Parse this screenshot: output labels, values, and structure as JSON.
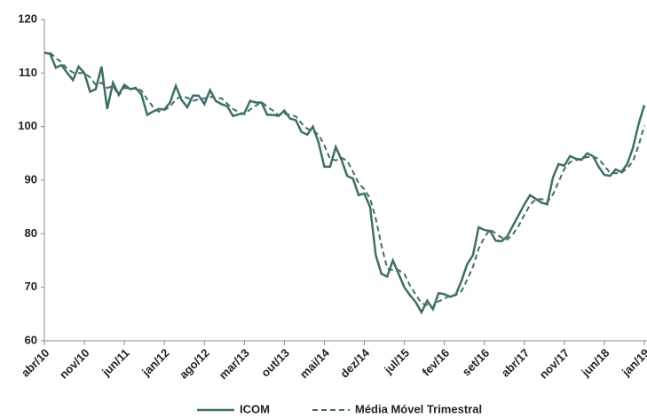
{
  "chart_data": {
    "type": "line",
    "categories": [
      "abr/10",
      null,
      null,
      null,
      null,
      null,
      null,
      "nov/10",
      null,
      null,
      null,
      null,
      null,
      null,
      "jun/11",
      null,
      null,
      null,
      null,
      null,
      null,
      "jan/12",
      null,
      null,
      null,
      null,
      null,
      null,
      "ago/12",
      null,
      null,
      null,
      null,
      null,
      null,
      "mar/13",
      null,
      null,
      null,
      null,
      null,
      null,
      "out/13",
      null,
      null,
      null,
      null,
      null,
      null,
      "mai/14",
      null,
      null,
      null,
      null,
      null,
      null,
      "dez/14",
      null,
      null,
      null,
      null,
      null,
      null,
      "jul/15",
      null,
      null,
      null,
      null,
      null,
      null,
      "fev/16",
      null,
      null,
      null,
      null,
      null,
      null,
      "set/16",
      null,
      null,
      null,
      null,
      null,
      null,
      "abr/17",
      null,
      null,
      null,
      null,
      null,
      null,
      "nov/17",
      null,
      null,
      null,
      null,
      null,
      null,
      "jun/18",
      null,
      null,
      null,
      null,
      null,
      null,
      "jan/19"
    ],
    "series": [
      {
        "name": "ICOM",
        "color": "#3f6e69",
        "dash": false,
        "values": [
          113.8,
          113.6,
          111.0,
          111.5,
          110.0,
          108.7,
          111.2,
          110.0,
          106.5,
          107.0,
          111.2,
          103.3,
          108.2,
          106.0,
          107.8,
          107.0,
          107.2,
          106.0,
          102.2,
          102.8,
          103.3,
          103.2,
          104.5,
          107.6,
          105.0,
          103.6,
          105.8,
          105.8,
          104.2,
          106.8,
          104.8,
          104.2,
          103.8,
          102.0,
          102.3,
          102.5,
          104.8,
          104.5,
          104.5,
          102.2,
          102.2,
          102.0,
          103.0,
          101.5,
          101.2,
          99.0,
          98.5,
          100.0,
          97.0,
          92.5,
          92.5,
          96.2,
          93.8,
          90.8,
          90.3,
          87.2,
          87.5,
          85.0,
          76.0,
          72.5,
          72.0,
          75.0,
          72.5,
          70.0,
          68.5,
          67.2,
          65.3,
          67.5,
          65.9,
          68.9,
          68.7,
          68.2,
          68.6,
          71.2,
          74.3,
          76.0,
          81.2,
          80.7,
          80.5,
          78.7,
          78.6,
          79.5,
          81.5,
          83.5,
          85.5,
          87.2,
          86.5,
          85.8,
          85.5,
          90.5,
          93.0,
          92.7,
          94.5,
          94.0,
          93.8,
          95.0,
          94.5,
          92.5,
          91.0,
          90.8,
          92.0,
          91.5,
          93.0,
          96.0,
          100.5,
          104.0
        ]
      },
      {
        "name": "Média Móvel Trimestral",
        "color": "#3f6e69",
        "dash": true,
        "values": [
          null,
          113.8,
          112.8,
          112.0,
          110.8,
          110.1,
          110.0,
          110.0,
          109.2,
          107.8,
          108.2,
          107.2,
          107.6,
          105.8,
          107.3,
          106.9,
          107.3,
          106.7,
          105.1,
          103.7,
          102.8,
          103.1,
          103.7,
          105.1,
          105.7,
          105.4,
          104.8,
          105.1,
          105.3,
          105.6,
          105.3,
          105.3,
          104.3,
          103.3,
          102.7,
          102.3,
          103.2,
          103.9,
          104.6,
          103.7,
          103.0,
          102.1,
          102.4,
          102.2,
          101.9,
          100.6,
          99.6,
          99.2,
          98.5,
          96.5,
          94.0,
          93.7,
          94.2,
          93.6,
          91.6,
          89.4,
          88.3,
          86.6,
          82.8,
          77.8,
          73.5,
          73.2,
          73.2,
          72.5,
          70.3,
          68.6,
          67.0,
          66.7,
          66.2,
          67.4,
          67.8,
          68.6,
          68.5,
          69.3,
          71.4,
          73.8,
          77.2,
          79.3,
          80.8,
          80.0,
          79.3,
          78.9,
          79.9,
          81.5,
          83.5,
          85.4,
          86.4,
          86.5,
          85.9,
          87.3,
          89.7,
          92.1,
          93.4,
          93.7,
          94.1,
          94.3,
          94.4,
          94.0,
          92.7,
          91.4,
          91.3,
          91.4,
          92.2,
          93.5,
          96.5,
          100.2
        ]
      }
    ],
    "ylim": [
      60,
      120
    ],
    "yticks": [
      60,
      70,
      80,
      90,
      100,
      110,
      120
    ],
    "grid": false,
    "legend": "bottom"
  }
}
